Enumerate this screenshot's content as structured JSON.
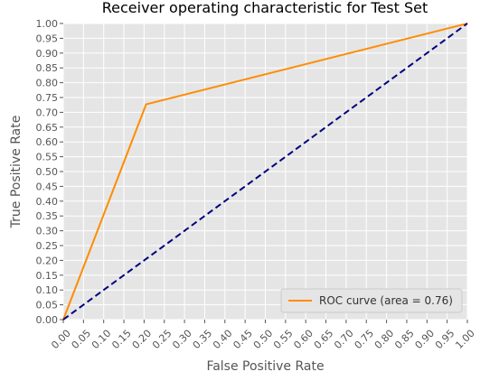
{
  "chart_data": {
    "type": "line",
    "title": "Receiver operating characteristic for Test Set",
    "xlabel": "False Positive Rate",
    "ylabel": "True Positive Rate",
    "xlim": [
      0.0,
      1.0
    ],
    "ylim": [
      0.0,
      1.0
    ],
    "x_ticks": [
      "0.00",
      "0.05",
      "0.10",
      "0.15",
      "0.20",
      "0.25",
      "0.30",
      "0.35",
      "0.40",
      "0.45",
      "0.50",
      "0.55",
      "0.60",
      "0.65",
      "0.70",
      "0.75",
      "0.80",
      "0.85",
      "0.90",
      "0.95",
      "1.00"
    ],
    "y_ticks": [
      "0.00",
      "0.05",
      "0.10",
      "0.15",
      "0.20",
      "0.25",
      "0.30",
      "0.35",
      "0.40",
      "0.45",
      "0.50",
      "0.55",
      "0.60",
      "0.65",
      "0.70",
      "0.75",
      "0.80",
      "0.85",
      "0.90",
      "0.95",
      "1.00"
    ],
    "x_tick_rotation": 45,
    "grid": true,
    "background": "#e5e5e5",
    "grid_color": "#ffffff",
    "legend_position": "lower-right",
    "series": [
      {
        "name": "ROC curve (area = 0.76)",
        "color": "#ff8c00",
        "line_style": "solid",
        "x": [
          0.0,
          0.205,
          1.0
        ],
        "y": [
          0.0,
          0.727,
          1.0
        ]
      },
      {
        "color": "#000080",
        "line_style": "dashed",
        "x": [
          0.0,
          1.0
        ],
        "y": [
          0.0,
          1.0
        ]
      }
    ]
  }
}
